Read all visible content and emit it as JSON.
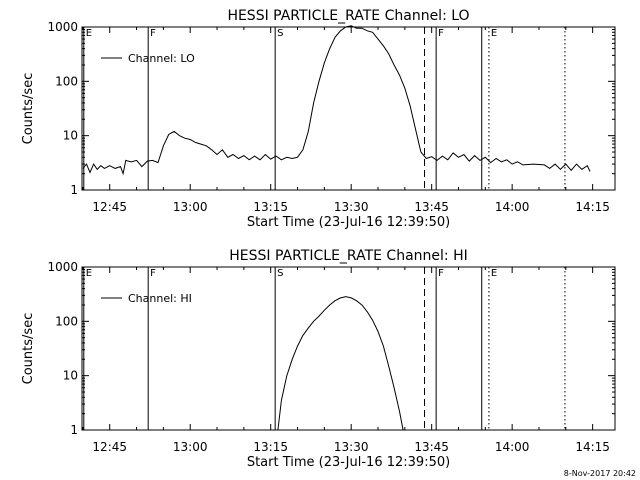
{
  "timestamp": "8-Nov-2017 20:42",
  "chart_data": [
    {
      "type": "line",
      "title": "HESSI PARTICLE_RATE Channel: LO",
      "xlabel": "Start Time (23-Jul-16 12:39:50)",
      "ylabel": "Counts/sec",
      "yscale": "log",
      "ylim": [
        1,
        1000
      ],
      "xlim": [
        "12:39:50",
        "14:19:10"
      ],
      "x_ticks": [
        "12:45",
        "13:00",
        "13:15",
        "13:30",
        "13:45",
        "14:00",
        "14:15"
      ],
      "y_ticks": [
        "1",
        "10",
        "100",
        "1000"
      ],
      "legend": {
        "placement": "top-left",
        "entries": [
          "Channel: LO"
        ]
      },
      "series": [
        {
          "name": "Channel: LO",
          "points": [
            [
              "12:40:00",
              2.5
            ],
            [
              "12:40:40",
              3
            ],
            [
              "12:41:20",
              2.1
            ],
            [
              "12:42:00",
              3
            ],
            [
              "12:42:40",
              2.4
            ],
            [
              "12:43:20",
              2.8
            ],
            [
              "12:44:00",
              2.5
            ],
            [
              "12:45:00",
              2.8
            ],
            [
              "12:46:00",
              2.5
            ],
            [
              "12:47:00",
              2.7
            ],
            [
              "12:47:30",
              2.0
            ],
            [
              "12:48:00",
              3.5
            ],
            [
              "12:49:00",
              3.3
            ],
            [
              "12:50:00",
              3.5
            ],
            [
              "12:51:00",
              2.7
            ],
            [
              "12:52:00",
              3.4
            ],
            [
              "12:53:00",
              3.5
            ],
            [
              "12:54:00",
              3.2
            ],
            [
              "12:55:00",
              6.5
            ],
            [
              "12:56:00",
              10.5
            ],
            [
              "12:57:00",
              12
            ],
            [
              "12:58:00",
              10
            ],
            [
              "12:59:00",
              9
            ],
            [
              "13:00:00",
              8.5
            ],
            [
              "13:01:00",
              7.5
            ],
            [
              "13:02:00",
              7
            ],
            [
              "13:03:00",
              6.5
            ],
            [
              "13:04:00",
              5.5
            ],
            [
              "13:05:00",
              4.5
            ],
            [
              "13:06:00",
              5.5
            ],
            [
              "13:07:00",
              4
            ],
            [
              "13:08:00",
              4.5
            ],
            [
              "13:09:00",
              3.8
            ],
            [
              "13:10:00",
              4.3
            ],
            [
              "13:11:00",
              3.6
            ],
            [
              "13:12:00",
              4.2
            ],
            [
              "13:13:00",
              3.6
            ],
            [
              "13:14:00",
              4.5
            ],
            [
              "13:15:00",
              3.7
            ],
            [
              "13:16:00",
              4.2
            ],
            [
              "13:17:00",
              3.6
            ],
            [
              "13:18:00",
              4.0
            ],
            [
              "13:19:00",
              3.8
            ],
            [
              "13:20:00",
              4.0
            ],
            [
              "13:21:00",
              5.5
            ],
            [
              "13:22:00",
              12
            ],
            [
              "13:23:00",
              40
            ],
            [
              "13:24:00",
              100
            ],
            [
              "13:25:00",
              220
            ],
            [
              "13:26:00",
              400
            ],
            [
              "13:27:00",
              650
            ],
            [
              "13:28:00",
              850
            ],
            [
              "13:29:00",
              1000
            ],
            [
              "13:30:00",
              1050
            ],
            [
              "13:31:00",
              950
            ],
            [
              "13:32:00",
              950
            ],
            [
              "13:33:00",
              850
            ],
            [
              "13:34:00",
              800
            ],
            [
              "13:35:00",
              600
            ],
            [
              "13:36:00",
              450
            ],
            [
              "13:37:00",
              320
            ],
            [
              "13:38:00",
              200
            ],
            [
              "13:39:00",
              130
            ],
            [
              "13:40:00",
              75
            ],
            [
              "13:41:00",
              35
            ],
            [
              "13:42:00",
              13
            ],
            [
              "13:43:00",
              5
            ],
            [
              "13:44:00",
              3.8
            ],
            [
              "13:45:00",
              4.1
            ],
            [
              "13:46:00",
              3.5
            ],
            [
              "13:47:00",
              4.2
            ],
            [
              "13:48:00",
              3.6
            ],
            [
              "13:49:00",
              4.8
            ],
            [
              "13:50:00",
              4.0
            ],
            [
              "13:51:00",
              4.5
            ],
            [
              "13:52:00",
              3.4
            ],
            [
              "13:53:00",
              4.3
            ],
            [
              "13:54:00",
              3.5
            ],
            [
              "13:55:00",
              4.0
            ],
            [
              "13:56:00",
              3.2
            ],
            [
              "13:57:00",
              3.8
            ],
            [
              "13:58:00",
              3.3
            ],
            [
              "13:59:00",
              3.6
            ],
            [
              "14:00:00",
              3.0
            ],
            [
              "14:01:00",
              3.3
            ],
            [
              "14:02:00",
              2.9
            ],
            [
              "14:04:00",
              3.0
            ],
            [
              "14:06:00",
              2.9
            ],
            [
              "14:07:00",
              2.5
            ],
            [
              "14:08:00",
              3.0
            ],
            [
              "14:09:00",
              2.4
            ],
            [
              "14:10:00",
              3.0
            ],
            [
              "14:11:00",
              2.3
            ],
            [
              "14:12:00",
              3.0
            ],
            [
              "14:13:00",
              2.4
            ],
            [
              "14:14:00",
              2.8
            ],
            [
              "14:14:30",
              2.2
            ]
          ]
        }
      ],
      "markers": [
        {
          "label": "E",
          "time": "12:40:10",
          "style": "solid"
        },
        {
          "label": "F",
          "time": "12:52:10",
          "style": "solid"
        },
        {
          "label": "S",
          "time": "13:15:50",
          "style": "solid"
        },
        {
          "label": "",
          "time": "13:43:40",
          "style": "dashed"
        },
        {
          "label": "F",
          "time": "13:45:50",
          "style": "solid"
        },
        {
          "label": "",
          "time": "13:54:20",
          "style": "solid"
        },
        {
          "label": "E",
          "time": "13:55:40",
          "style": "dotted"
        },
        {
          "label": "",
          "time": "14:09:50",
          "style": "dotted"
        }
      ]
    },
    {
      "type": "line",
      "title": "HESSI PARTICLE_RATE Channel: HI",
      "xlabel": "Start Time (23-Jul-16 12:39:50)",
      "ylabel": "Counts/sec",
      "yscale": "log",
      "ylim": [
        1,
        1000
      ],
      "xlim": [
        "12:39:50",
        "14:19:10"
      ],
      "x_ticks": [
        "12:45",
        "13:00",
        "13:15",
        "13:30",
        "13:45",
        "14:00",
        "14:15"
      ],
      "y_ticks": [
        "1",
        "10",
        "100",
        "1000"
      ],
      "legend": {
        "placement": "top-left",
        "entries": [
          "Channel: HI"
        ]
      },
      "series": [
        {
          "name": "Channel: HI",
          "points": [
            [
              "13:16:20",
              1
            ],
            [
              "13:17:00",
              3.5
            ],
            [
              "13:18:00",
              10
            ],
            [
              "13:19:00",
              20
            ],
            [
              "13:20:00",
              35
            ],
            [
              "13:21:00",
              55
            ],
            [
              "13:22:00",
              75
            ],
            [
              "13:23:00",
              100
            ],
            [
              "13:24:00",
              125
            ],
            [
              "13:25:00",
              160
            ],
            [
              "13:26:00",
              200
            ],
            [
              "13:27:00",
              240
            ],
            [
              "13:28:00",
              270
            ],
            [
              "13:29:00",
              285
            ],
            [
              "13:30:00",
              270
            ],
            [
              "13:31:00",
              240
            ],
            [
              "13:32:00",
              200
            ],
            [
              "13:33:00",
              150
            ],
            [
              "13:34:00",
              105
            ],
            [
              "13:35:00",
              65
            ],
            [
              "13:36:00",
              35
            ],
            [
              "13:37:00",
              15
            ],
            [
              "13:38:00",
              6
            ],
            [
              "13:39:00",
              2.2
            ],
            [
              "13:39:40",
              1
            ]
          ]
        }
      ],
      "markers": [
        {
          "label": "E",
          "time": "12:40:10",
          "style": "solid"
        },
        {
          "label": "F",
          "time": "12:52:10",
          "style": "solid"
        },
        {
          "label": "S",
          "time": "13:15:50",
          "style": "solid"
        },
        {
          "label": "",
          "time": "13:43:40",
          "style": "dashed"
        },
        {
          "label": "F",
          "time": "13:45:50",
          "style": "solid"
        },
        {
          "label": "",
          "time": "13:54:20",
          "style": "solid"
        },
        {
          "label": "E",
          "time": "13:55:40",
          "style": "dotted"
        },
        {
          "label": "",
          "time": "14:09:50",
          "style": "dotted"
        }
      ]
    }
  ]
}
